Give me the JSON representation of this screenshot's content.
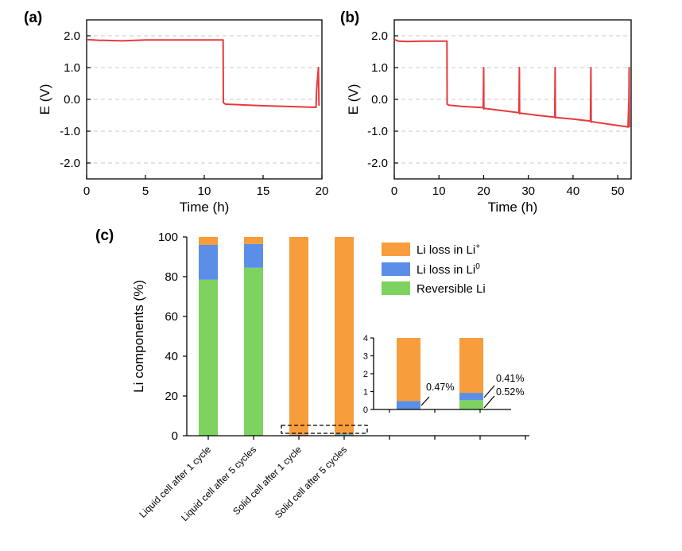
{
  "panels": {
    "a": "(a)",
    "b": "(b)",
    "c": "(c)"
  },
  "colors": {
    "curve": "#e8393c",
    "ion": "#f79d3b",
    "metal": "#5b8ee6",
    "reversible": "#7ed25f"
  },
  "chart_data": [
    {
      "type": "line",
      "panel": "(a)",
      "xlabel": "Time (h)",
      "ylabel": "E (V)",
      "xlim": [
        0,
        20
      ],
      "ylim": [
        -2.5,
        2.5
      ],
      "xticks": [
        0,
        5,
        10,
        15,
        20
      ],
      "yticks": [
        -2.0,
        -1.0,
        0.0,
        1.0,
        2.0
      ],
      "ytick_labels": [
        "-2.0",
        "-1.0",
        "0.0",
        "1.0",
        "2.0"
      ],
      "grid": true,
      "series": [
        {
          "x": [
            0,
            1,
            3,
            5,
            8,
            11.6,
            11.62,
            11.8,
            15,
            19.5,
            19.55,
            19.7,
            19.72,
            19.75
          ],
          "y": [
            1.88,
            1.86,
            1.84,
            1.87,
            1.87,
            1.87,
            -0.1,
            -0.15,
            -0.2,
            -0.25,
            0.3,
            1.0,
            0.5,
            -0.2
          ]
        }
      ]
    },
    {
      "type": "line",
      "panel": "(b)",
      "xlabel": "Time (h)",
      "ylabel": "E (V)",
      "xlim": [
        0,
        53
      ],
      "ylim": [
        -2.5,
        2.5
      ],
      "xticks": [
        0,
        10,
        20,
        30,
        40,
        50
      ],
      "yticks": [
        -2.0,
        -1.0,
        0.0,
        1.0,
        2.0
      ],
      "ytick_labels": [
        "-2.0",
        "-1.0",
        "0.0",
        "1.0",
        "2.0"
      ],
      "grid": true,
      "series": [
        {
          "x": [
            0,
            1,
            3,
            6,
            11.8,
            11.82,
            12.2,
            15,
            19.9,
            20,
            20.05,
            20.1,
            24,
            27.9,
            28,
            28.05,
            28.1,
            32,
            35.9,
            36,
            36.05,
            36.1,
            40,
            43.9,
            44,
            44.05,
            44.1,
            48,
            52,
            52.3,
            52.5,
            52.55,
            52.6
          ],
          "y": [
            1.88,
            1.83,
            1.82,
            1.83,
            1.83,
            -0.15,
            -0.18,
            -0.22,
            -0.26,
            1.0,
            -0.3,
            -0.28,
            -0.35,
            -0.42,
            1.0,
            -0.45,
            -0.43,
            -0.5,
            -0.56,
            1.0,
            -0.58,
            -0.57,
            -0.62,
            -0.68,
            1.0,
            -0.72,
            -0.7,
            -0.78,
            -0.86,
            -0.87,
            0.0,
            1.0,
            -0.88
          ]
        }
      ]
    },
    {
      "type": "bar",
      "stacked": true,
      "panel": "(c)",
      "ylabel": "Li components (%)",
      "ylim": [
        0,
        100
      ],
      "yticks": [
        0,
        20,
        40,
        60,
        80,
        100
      ],
      "categories": [
        "Liquid cell after 1 cycle",
        "Liquid cell after 5 cycles",
        "Solid cell after 1 cycle",
        "Solid cell after 5 cycles"
      ],
      "series": [
        {
          "key": "reversible",
          "name": "Reversible Li",
          "values": [
            78.5,
            84.5,
            0,
            0.52
          ]
        },
        {
          "key": "metal",
          "name": "Li loss in Li",
          "name_sup": "0",
          "values": [
            17.5,
            12.0,
            0.47,
            0.41
          ]
        },
        {
          "key": "ion",
          "name": "Li loss in Li",
          "name_sup": "+",
          "values": [
            4.0,
            3.5,
            99.53,
            99.07
          ]
        }
      ],
      "legend": "top-right",
      "inset": {
        "ylim": [
          0,
          4
        ],
        "yticks": [
          0,
          1,
          2,
          3,
          4
        ],
        "annotations": [
          "0.47%",
          "0.41%",
          "0.52%"
        ]
      }
    }
  ]
}
